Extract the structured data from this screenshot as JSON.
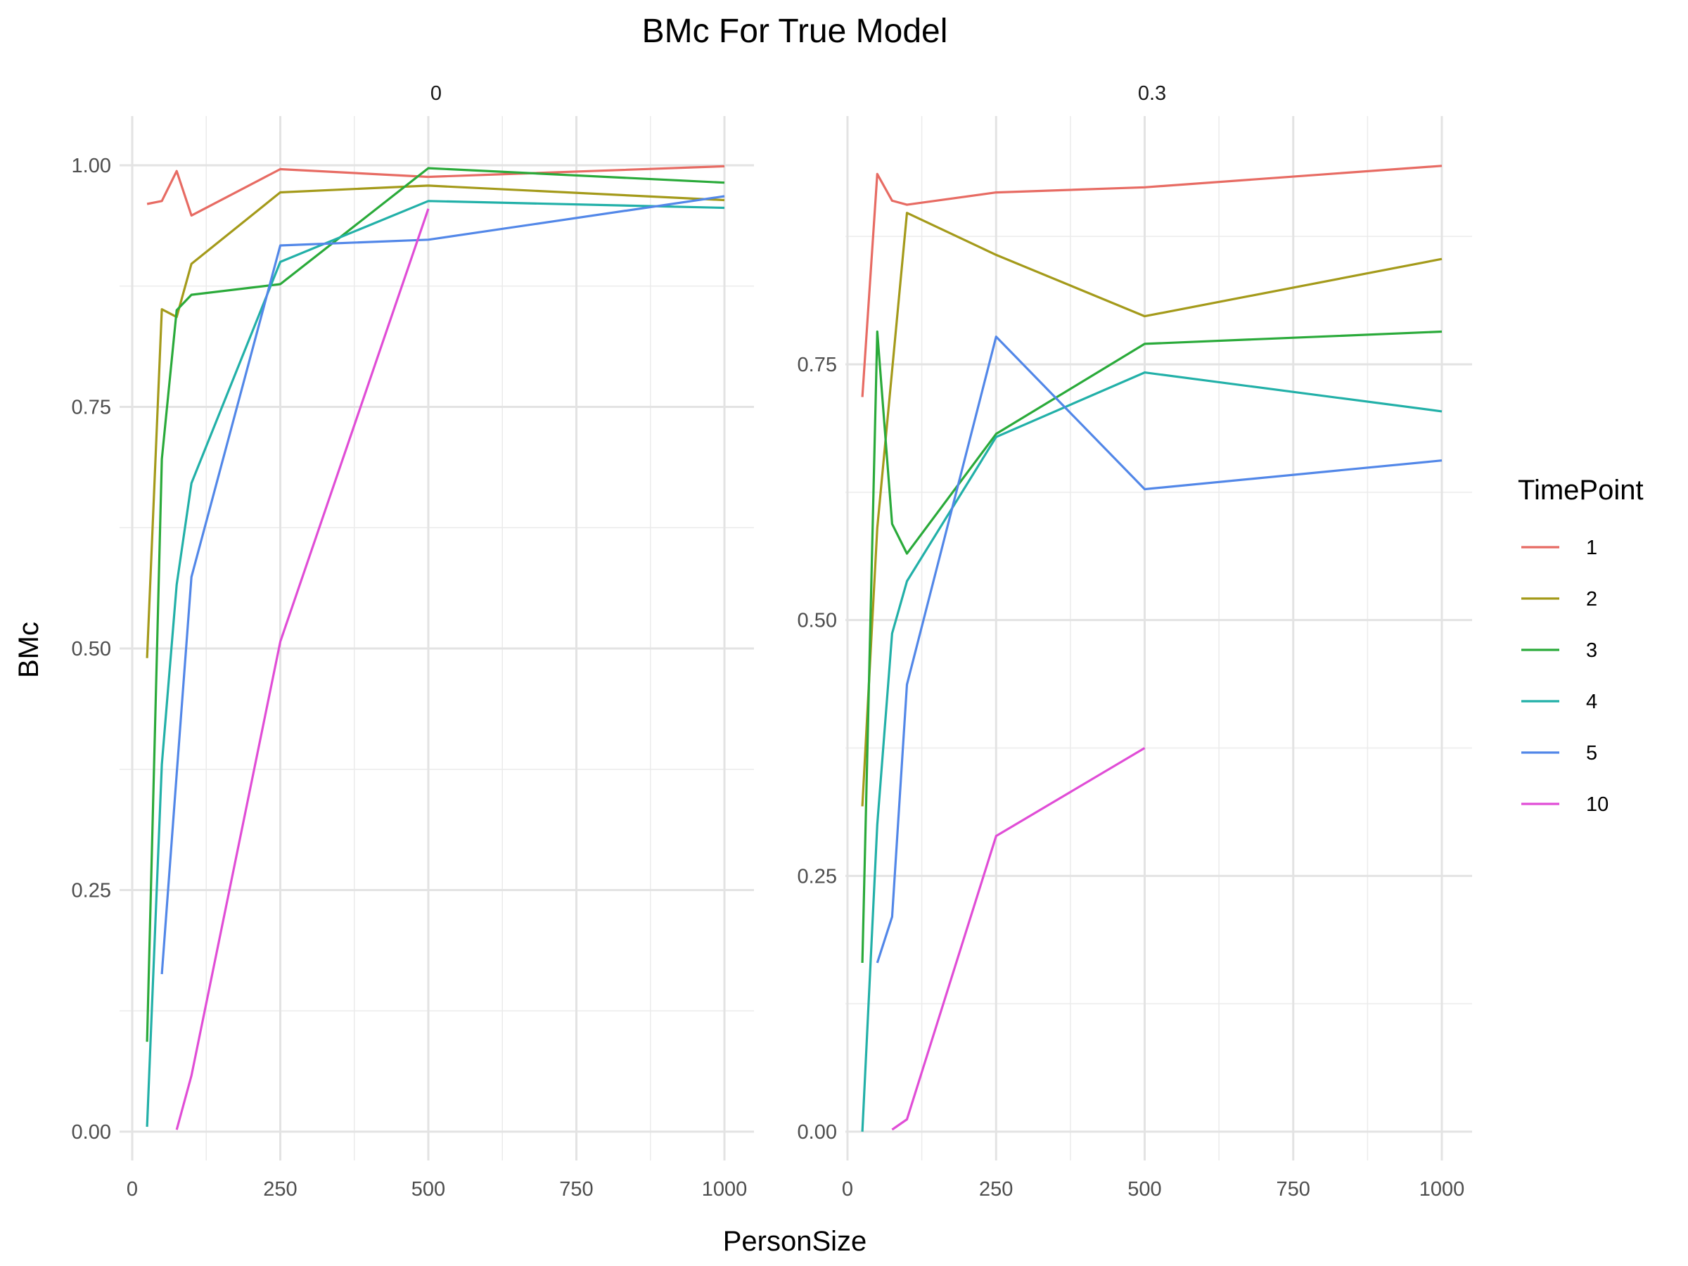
{
  "chart_data": {
    "type": "line",
    "title": "BMc For True Model",
    "xlabel": "PersonSize",
    "ylabel": "BMc",
    "legend": {
      "title": "TimePoint",
      "placement": "right"
    },
    "series_colors": {
      "1": "#E76B63",
      "2": "#A49A1A",
      "3": "#2AAA3A",
      "4": "#22B0A8",
      "5": "#5287E8",
      "10": "#E04DD6"
    },
    "series_names": [
      "1",
      "2",
      "3",
      "4",
      "5",
      "10"
    ],
    "panels": [
      {
        "label": "0",
        "xlim": [
          0,
          1000
        ],
        "ylim": [
          0,
          1.0
        ],
        "xticks": [
          {
            "value": 0,
            "label": "0"
          },
          {
            "value": 250,
            "label": "250"
          },
          {
            "value": 500,
            "label": "500"
          },
          {
            "value": 750,
            "label": "750"
          },
          {
            "value": 1000,
            "label": "1000"
          }
        ],
        "yticks": [
          {
            "value": 0,
            "label": "0.00"
          },
          {
            "value": 0.25,
            "label": "0.25"
          },
          {
            "value": 0.5,
            "label": "0.50"
          },
          {
            "value": 0.75,
            "label": "0.75"
          },
          {
            "value": 1.0,
            "label": "1.00"
          }
        ],
        "series": [
          {
            "name": "1",
            "points": [
              [
                25,
                0.96
              ],
              [
                50,
                0.963
              ],
              [
                75,
                0.994
              ],
              [
                100,
                0.948
              ],
              [
                250,
                0.996
              ],
              [
                500,
                0.988
              ],
              [
                1000,
                0.999
              ]
            ]
          },
          {
            "name": "2",
            "points": [
              [
                25,
                0.49
              ],
              [
                50,
                0.851
              ],
              [
                75,
                0.843
              ],
              [
                100,
                0.898
              ],
              [
                250,
                0.972
              ],
              [
                500,
                0.979
              ],
              [
                1000,
                0.964
              ]
            ]
          },
          {
            "name": "3",
            "points": [
              [
                25,
                0.093
              ],
              [
                50,
                0.696
              ],
              [
                75,
                0.85
              ],
              [
                100,
                0.866
              ],
              [
                250,
                0.877
              ],
              [
                500,
                0.997
              ],
              [
                1000,
                0.982
              ]
            ]
          },
          {
            "name": "4",
            "points": [
              [
                25,
                0.005
              ],
              [
                50,
                0.38
              ],
              [
                75,
                0.566
              ],
              [
                100,
                0.671
              ],
              [
                250,
                0.9
              ],
              [
                500,
                0.963
              ],
              [
                1000,
                0.956
              ]
            ]
          },
          {
            "name": "5",
            "points": [
              [
                50,
                0.163
              ],
              [
                75,
                0.37
              ],
              [
                100,
                0.574
              ],
              [
                250,
                0.917
              ],
              [
                500,
                0.923
              ],
              [
                1000,
                0.968
              ]
            ]
          },
          {
            "name": "10",
            "points": [
              [
                75,
                0.002
              ],
              [
                100,
                0.058
              ],
              [
                250,
                0.507
              ],
              [
                500,
                0.955
              ]
            ]
          }
        ]
      },
      {
        "label": "0.3",
        "xlim": [
          0,
          1000
        ],
        "ylim": [
          0,
          0.95
        ],
        "xticks": [
          {
            "value": 0,
            "label": "0"
          },
          {
            "value": 250,
            "label": "250"
          },
          {
            "value": 500,
            "label": "500"
          },
          {
            "value": 750,
            "label": "750"
          },
          {
            "value": 1000,
            "label": "1000"
          }
        ],
        "yticks": [
          {
            "value": 0,
            "label": "0.00"
          },
          {
            "value": 0.25,
            "label": "0.25"
          },
          {
            "value": 0.5,
            "label": "0.50"
          },
          {
            "value": 0.75,
            "label": "0.75"
          }
        ],
        "series": [
          {
            "name": "1",
            "points": [
              [
                25,
                0.718
              ],
              [
                50,
                0.936
              ],
              [
                75,
                0.91
              ],
              [
                100,
                0.906
              ],
              [
                250,
                0.918
              ],
              [
                500,
                0.923
              ],
              [
                1000,
                0.944
              ]
            ]
          },
          {
            "name": "2",
            "points": [
              [
                25,
                0.318
              ],
              [
                50,
                0.59
              ],
              [
                100,
                0.898
              ],
              [
                250,
                0.857
              ],
              [
                500,
                0.797
              ],
              [
                1000,
                0.853
              ]
            ]
          },
          {
            "name": "3",
            "points": [
              [
                25,
                0.165
              ],
              [
                50,
                0.782
              ],
              [
                75,
                0.594
              ],
              [
                100,
                0.565
              ],
              [
                250,
                0.682
              ],
              [
                500,
                0.77
              ],
              [
                1000,
                0.782
              ]
            ]
          },
          {
            "name": "4",
            "points": [
              [
                25,
                0.0
              ],
              [
                50,
                0.3
              ],
              [
                75,
                0.487
              ],
              [
                100,
                0.538
              ],
              [
                250,
                0.679
              ],
              [
                500,
                0.742
              ],
              [
                1000,
                0.704
              ]
            ]
          },
          {
            "name": "5",
            "points": [
              [
                50,
                0.165
              ],
              [
                75,
                0.21
              ],
              [
                100,
                0.437
              ],
              [
                250,
                0.777
              ],
              [
                500,
                0.628
              ],
              [
                1000,
                0.656
              ]
            ]
          },
          {
            "name": "10",
            "points": [
              [
                75,
                0.002
              ],
              [
                100,
                0.012
              ],
              [
                250,
                0.289
              ],
              [
                500,
                0.375
              ]
            ]
          }
        ]
      }
    ]
  }
}
